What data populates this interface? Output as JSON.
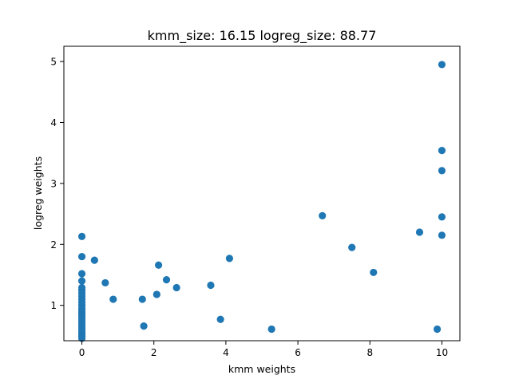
{
  "chart_data": {
    "type": "scatter",
    "title": "kmm_size: 16.15 logreg_size: 88.77",
    "xlabel": "kmm weights",
    "ylabel": "logreg weights",
    "xlim": [
      -0.5,
      10.5
    ],
    "ylim": [
      0.42,
      5.25
    ],
    "xticks": [
      0,
      2,
      4,
      6,
      8,
      10
    ],
    "yticks": [
      1,
      2,
      3,
      4,
      5
    ],
    "xtick_labels": [
      "0",
      "2",
      "4",
      "6",
      "8",
      "10"
    ],
    "ytick_labels": [
      "1",
      "2",
      "3",
      "4",
      "5"
    ],
    "grid": false,
    "marker_color": "#1f77b4",
    "points": [
      [
        0,
        2.13
      ],
      [
        0,
        1.8
      ],
      [
        0,
        1.52
      ],
      [
        0,
        1.4
      ],
      [
        0,
        1.29
      ],
      [
        0,
        1.25
      ],
      [
        0,
        1.2
      ],
      [
        0,
        1.15
      ],
      [
        0,
        1.1
      ],
      [
        0,
        1.05
      ],
      [
        0,
        1.0
      ],
      [
        0,
        0.95
      ],
      [
        0,
        0.91
      ],
      [
        0,
        0.87
      ],
      [
        0,
        0.83
      ],
      [
        0,
        0.79
      ],
      [
        0,
        0.75
      ],
      [
        0,
        0.71
      ],
      [
        0,
        0.67
      ],
      [
        0,
        0.63
      ],
      [
        0,
        0.59
      ],
      [
        0,
        0.55
      ],
      [
        0,
        0.52
      ],
      [
        0,
        0.49
      ],
      [
        0,
        0.46
      ],
      [
        0.35,
        1.74
      ],
      [
        0.65,
        1.37
      ],
      [
        0.87,
        1.1
      ],
      [
        1.68,
        1.1
      ],
      [
        1.72,
        0.66
      ],
      [
        2.08,
        1.18
      ],
      [
        2.13,
        1.66
      ],
      [
        2.35,
        1.42
      ],
      [
        2.63,
        1.29
      ],
      [
        3.58,
        1.33
      ],
      [
        3.85,
        0.77
      ],
      [
        4.1,
        1.77
      ],
      [
        5.27,
        0.61
      ],
      [
        6.68,
        2.47
      ],
      [
        7.5,
        1.95
      ],
      [
        8.1,
        1.54
      ],
      [
        9.38,
        2.2
      ],
      [
        9.87,
        0.61
      ],
      [
        10,
        4.95
      ],
      [
        10,
        3.54
      ],
      [
        10,
        3.21
      ],
      [
        10,
        2.45
      ],
      [
        10,
        2.15
      ]
    ]
  }
}
